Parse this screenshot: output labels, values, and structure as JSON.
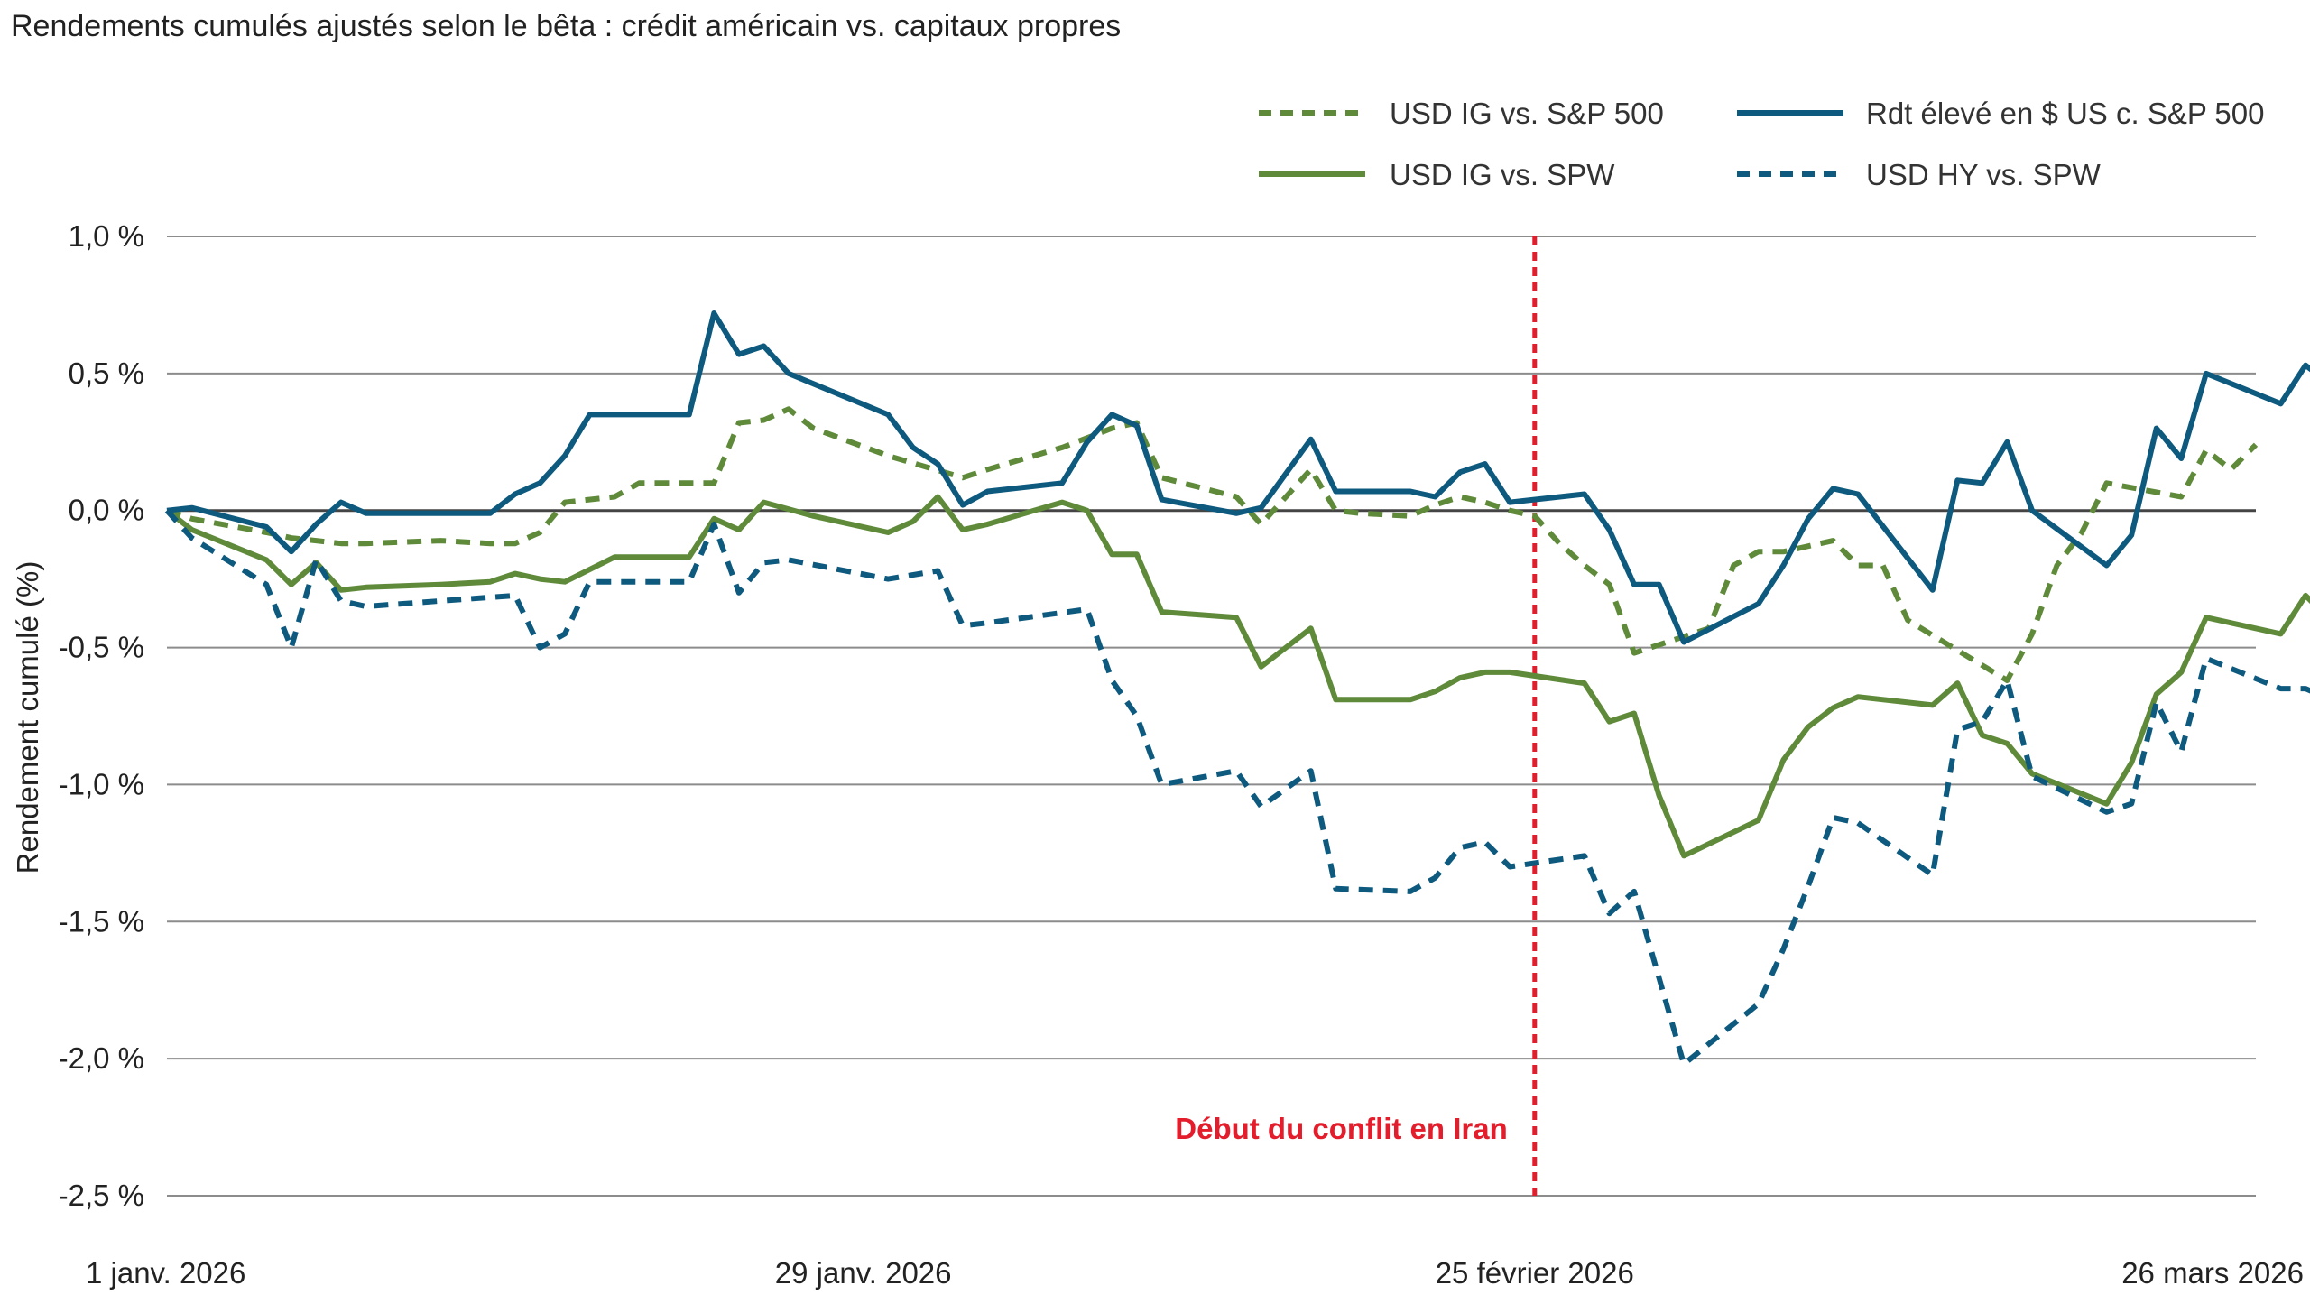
{
  "chart_data": {
    "type": "line",
    "title": "Rendements cumulés ajustés selon le bêta : crédit américain vs. capitaux propres",
    "xlabel": "",
    "ylabel": "Rendement cumulé (%)",
    "ylim": [
      -2.5,
      1.0
    ],
    "xlim": [
      "2026-01-01",
      "2026-03-26"
    ],
    "grid": "horizontal",
    "legend_position": "top-right",
    "y_ticks": [
      1.0,
      0.5,
      0.0,
      -0.5,
      -1.0,
      -1.5,
      -2.0,
      -2.5
    ],
    "y_tick_labels": [
      "1,0 %",
      "0,5 %",
      "0,0 %",
      "-0,5 %",
      "-1,0 %",
      "-1,5 %",
      "-2,0 %",
      "-2,5 %"
    ],
    "x_ticks": [
      "2026-01-01",
      "2026-01-29",
      "2026-02-25",
      "2026-03-26"
    ],
    "x_tick_labels": [
      "1 janv. 2026",
      "29 janv. 2026",
      "25 février 2026",
      "26 mars 2026"
    ],
    "annotation": {
      "date": "2026-02-25",
      "label": "Début du conflit en Iran",
      "color": "#e31d2b"
    },
    "series": [
      {
        "name": "USD IG vs. S&P 500",
        "color": "#5f8a3a",
        "dash": "dashed",
        "points": [
          [
            "2026-01-01",
            0.0
          ],
          [
            "2026-01-02",
            -0.03
          ],
          [
            "2026-01-05",
            -0.08
          ],
          [
            "2026-01-06",
            -0.1
          ],
          [
            "2026-01-07",
            -0.11
          ],
          [
            "2026-01-08",
            -0.12
          ],
          [
            "2026-01-09",
            -0.12
          ],
          [
            "2026-01-12",
            -0.11
          ],
          [
            "2026-01-14",
            -0.12
          ],
          [
            "2026-01-15",
            -0.12
          ],
          [
            "2026-01-16",
            -0.08
          ],
          [
            "2026-01-17",
            0.03
          ],
          [
            "2026-01-19",
            0.05
          ],
          [
            "2026-01-20",
            0.1
          ],
          [
            "2026-01-22",
            0.1
          ],
          [
            "2026-01-23",
            0.1
          ],
          [
            "2026-01-24",
            0.32
          ],
          [
            "2026-01-25",
            0.33
          ],
          [
            "2026-01-26",
            0.37
          ],
          [
            "2026-01-27",
            0.3
          ],
          [
            "2026-01-30",
            0.2
          ],
          [
            "2026-02-02",
            0.12
          ],
          [
            "2026-02-03",
            0.15
          ],
          [
            "2026-02-06",
            0.23
          ],
          [
            "2026-02-08",
            0.3
          ],
          [
            "2026-02-09",
            0.32
          ],
          [
            "2026-02-10",
            0.12
          ],
          [
            "2026-02-13",
            0.05
          ],
          [
            "2026-02-14",
            -0.05
          ],
          [
            "2026-02-16",
            0.15
          ],
          [
            "2026-02-17",
            0.0
          ],
          [
            "2026-02-18",
            -0.01
          ],
          [
            "2026-02-20",
            -0.02
          ],
          [
            "2026-02-21",
            0.02
          ],
          [
            "2026-02-22",
            0.05
          ],
          [
            "2026-02-23",
            0.03
          ],
          [
            "2026-02-24",
            0.0
          ],
          [
            "2026-02-25",
            -0.02
          ],
          [
            "2026-02-26",
            -0.12
          ],
          [
            "2026-02-27",
            -0.2
          ],
          [
            "2026-02-28",
            -0.27
          ],
          [
            "2026-03-01",
            -0.52
          ],
          [
            "2026-03-04",
            -0.43
          ],
          [
            "2026-03-05",
            -0.2
          ],
          [
            "2026-03-06",
            -0.15
          ],
          [
            "2026-03-07",
            -0.15
          ],
          [
            "2026-03-09",
            -0.11
          ],
          [
            "2026-03-10",
            -0.2
          ],
          [
            "2026-03-11",
            -0.2
          ],
          [
            "2026-03-12",
            -0.4
          ],
          [
            "2026-03-16",
            -0.62
          ],
          [
            "2026-03-17",
            -0.45
          ],
          [
            "2026-03-18",
            -0.2
          ],
          [
            "2026-03-19",
            -0.08
          ],
          [
            "2026-03-20",
            0.1
          ],
          [
            "2026-03-23",
            0.05
          ],
          [
            "2026-03-24",
            0.22
          ],
          [
            "2026-03-25",
            0.15
          ],
          [
            "2026-03-26",
            0.24
          ]
        ]
      },
      {
        "name": "USD IG vs. SPW",
        "color": "#5f8a3a",
        "dash": "solid",
        "points": [
          [
            "2026-01-01",
            0.0
          ],
          [
            "2026-01-02",
            -0.07
          ],
          [
            "2026-01-05",
            -0.18
          ],
          [
            "2026-01-06",
            -0.27
          ],
          [
            "2026-01-07",
            -0.19
          ],
          [
            "2026-01-08",
            -0.29
          ],
          [
            "2026-01-09",
            -0.28
          ],
          [
            "2026-01-12",
            -0.27
          ],
          [
            "2026-01-14",
            -0.26
          ],
          [
            "2026-01-15",
            -0.23
          ],
          [
            "2026-01-16",
            -0.25
          ],
          [
            "2026-01-17",
            -0.26
          ],
          [
            "2026-01-19",
            -0.17
          ],
          [
            "2026-01-20",
            -0.17
          ],
          [
            "2026-01-22",
            -0.17
          ],
          [
            "2026-01-23",
            -0.03
          ],
          [
            "2026-01-24",
            -0.07
          ],
          [
            "2026-01-25",
            0.03
          ],
          [
            "2026-01-27",
            -0.02
          ],
          [
            "2026-01-30",
            -0.08
          ],
          [
            "2026-01-31",
            -0.04
          ],
          [
            "2026-02-01",
            0.05
          ],
          [
            "2026-02-02",
            -0.07
          ],
          [
            "2026-02-03",
            -0.05
          ],
          [
            "2026-02-06",
            0.03
          ],
          [
            "2026-02-07",
            0.0
          ],
          [
            "2026-02-08",
            -0.16
          ],
          [
            "2026-02-09",
            -0.16
          ],
          [
            "2026-02-10",
            -0.37
          ],
          [
            "2026-02-13",
            -0.39
          ],
          [
            "2026-02-14",
            -0.57
          ],
          [
            "2026-02-16",
            -0.43
          ],
          [
            "2026-02-17",
            -0.69
          ],
          [
            "2026-02-20",
            -0.69
          ],
          [
            "2026-02-21",
            -0.66
          ],
          [
            "2026-02-22",
            -0.61
          ],
          [
            "2026-02-23",
            -0.59
          ],
          [
            "2026-02-24",
            -0.59
          ],
          [
            "2026-02-27",
            -0.63
          ],
          [
            "2026-02-28",
            -0.77
          ],
          [
            "2026-03-01",
            -0.74
          ],
          [
            "2026-03-02",
            -1.04
          ],
          [
            "2026-03-03",
            -1.26
          ],
          [
            "2026-03-06",
            -1.13
          ],
          [
            "2026-03-07",
            -0.91
          ],
          [
            "2026-03-08",
            -0.79
          ],
          [
            "2026-03-09",
            -0.72
          ],
          [
            "2026-03-10",
            -0.68
          ],
          [
            "2026-03-13",
            -0.71
          ],
          [
            "2026-03-14",
            -0.63
          ],
          [
            "2026-03-15",
            -0.82
          ],
          [
            "2026-03-16",
            -0.85
          ],
          [
            "2026-03-17",
            -0.96
          ],
          [
            "2026-03-20",
            -1.07
          ],
          [
            "2026-03-21",
            -0.92
          ],
          [
            "2026-03-22",
            -0.67
          ],
          [
            "2026-03-23",
            -0.59
          ],
          [
            "2026-03-24",
            -0.39
          ],
          [
            "2026-03-27",
            -0.45
          ],
          [
            "2026-03-28",
            -0.31
          ],
          [
            "2026-03-29",
            -0.4
          ],
          [
            "2026-03-30",
            -0.41
          ]
        ]
      },
      {
        "name": "Rdt élevé en $ US c. S&P 500",
        "color": "#0e5a7f",
        "dash": "solid",
        "points": [
          [
            "2026-01-01",
            0.0
          ],
          [
            "2026-01-02",
            0.01
          ],
          [
            "2026-01-05",
            -0.06
          ],
          [
            "2026-01-06",
            -0.15
          ],
          [
            "2026-01-07",
            -0.05
          ],
          [
            "2026-01-08",
            0.03
          ],
          [
            "2026-01-09",
            -0.01
          ],
          [
            "2026-01-12",
            -0.01
          ],
          [
            "2026-01-14",
            -0.01
          ],
          [
            "2026-01-15",
            0.06
          ],
          [
            "2026-01-16",
            0.1
          ],
          [
            "2026-01-17",
            0.2
          ],
          [
            "2026-01-18",
            0.35
          ],
          [
            "2026-01-20",
            0.35
          ],
          [
            "2026-01-22",
            0.35
          ],
          [
            "2026-01-23",
            0.72
          ],
          [
            "2026-01-24",
            0.57
          ],
          [
            "2026-01-25",
            0.6
          ],
          [
            "2026-01-26",
            0.5
          ],
          [
            "2026-01-30",
            0.35
          ],
          [
            "2026-01-31",
            0.23
          ],
          [
            "2026-02-01",
            0.17
          ],
          [
            "2026-02-02",
            0.02
          ],
          [
            "2026-02-03",
            0.07
          ],
          [
            "2026-02-06",
            0.1
          ],
          [
            "2026-02-07",
            0.25
          ],
          [
            "2026-02-08",
            0.35
          ],
          [
            "2026-02-09",
            0.31
          ],
          [
            "2026-02-10",
            0.04
          ],
          [
            "2026-02-13",
            -0.01
          ],
          [
            "2026-02-14",
            0.01
          ],
          [
            "2026-02-16",
            0.26
          ],
          [
            "2026-02-17",
            0.07
          ],
          [
            "2026-02-20",
            0.07
          ],
          [
            "2026-02-21",
            0.05
          ],
          [
            "2026-02-22",
            0.14
          ],
          [
            "2026-02-23",
            0.17
          ],
          [
            "2026-02-24",
            0.03
          ],
          [
            "2026-02-27",
            0.06
          ],
          [
            "2026-02-28",
            -0.07
          ],
          [
            "2026-03-01",
            -0.27
          ],
          [
            "2026-03-02",
            -0.27
          ],
          [
            "2026-03-03",
            -0.48
          ],
          [
            "2026-03-06",
            -0.34
          ],
          [
            "2026-03-07",
            -0.2
          ],
          [
            "2026-03-08",
            -0.03
          ],
          [
            "2026-03-09",
            0.08
          ],
          [
            "2026-03-10",
            0.06
          ],
          [
            "2026-03-13",
            -0.29
          ],
          [
            "2026-03-14",
            0.11
          ],
          [
            "2026-03-15",
            0.1
          ],
          [
            "2026-03-16",
            0.25
          ],
          [
            "2026-03-17",
            0.0
          ],
          [
            "2026-03-20",
            -0.2
          ],
          [
            "2026-03-21",
            -0.09
          ],
          [
            "2026-03-22",
            0.3
          ],
          [
            "2026-03-23",
            0.19
          ],
          [
            "2026-03-24",
            0.5
          ],
          [
            "2026-03-27",
            0.39
          ],
          [
            "2026-03-28",
            0.53
          ],
          [
            "2026-03-29",
            0.46
          ],
          [
            "2026-03-30",
            0.76
          ]
        ]
      },
      {
        "name": "USD HY vs. SPW",
        "color": "#0e5a7f",
        "dash": "dashed",
        "points": [
          [
            "2026-01-01",
            0.0
          ],
          [
            "2026-01-02",
            -0.1
          ],
          [
            "2026-01-05",
            -0.27
          ],
          [
            "2026-01-06",
            -0.5
          ],
          [
            "2026-01-07",
            -0.18
          ],
          [
            "2026-01-08",
            -0.33
          ],
          [
            "2026-01-09",
            -0.35
          ],
          [
            "2026-01-12",
            -0.33
          ],
          [
            "2026-01-15",
            -0.31
          ],
          [
            "2026-01-16",
            -0.5
          ],
          [
            "2026-01-17",
            -0.45
          ],
          [
            "2026-01-18",
            -0.26
          ],
          [
            "2026-01-20",
            -0.26
          ],
          [
            "2026-01-22",
            -0.26
          ],
          [
            "2026-01-23",
            -0.05
          ],
          [
            "2026-01-24",
            -0.3
          ],
          [
            "2026-01-25",
            -0.19
          ],
          [
            "2026-01-26",
            -0.18
          ],
          [
            "2026-01-30",
            -0.25
          ],
          [
            "2026-02-01",
            -0.22
          ],
          [
            "2026-02-02",
            -0.42
          ],
          [
            "2026-02-03",
            -0.41
          ],
          [
            "2026-02-07",
            -0.36
          ],
          [
            "2026-02-08",
            -0.62
          ],
          [
            "2026-02-09",
            -0.75
          ],
          [
            "2026-02-10",
            -1.0
          ],
          [
            "2026-02-13",
            -0.95
          ],
          [
            "2026-02-14",
            -1.08
          ],
          [
            "2026-02-16",
            -0.95
          ],
          [
            "2026-02-17",
            -1.38
          ],
          [
            "2026-02-20",
            -1.39
          ],
          [
            "2026-02-21",
            -1.34
          ],
          [
            "2026-02-22",
            -1.23
          ],
          [
            "2026-02-23",
            -1.21
          ],
          [
            "2026-02-24",
            -1.3
          ],
          [
            "2026-02-27",
            -1.26
          ],
          [
            "2026-02-28",
            -1.47
          ],
          [
            "2026-03-01",
            -1.39
          ],
          [
            "2026-03-03",
            -2.02
          ],
          [
            "2026-03-06",
            -1.8
          ],
          [
            "2026-03-07",
            -1.6
          ],
          [
            "2026-03-08",
            -1.37
          ],
          [
            "2026-03-09",
            -1.12
          ],
          [
            "2026-03-10",
            -1.14
          ],
          [
            "2026-03-13",
            -1.33
          ],
          [
            "2026-03-14",
            -0.8
          ],
          [
            "2026-03-15",
            -0.77
          ],
          [
            "2026-03-16",
            -0.62
          ],
          [
            "2026-03-17",
            -0.97
          ],
          [
            "2026-03-20",
            -1.1
          ],
          [
            "2026-03-21",
            -1.07
          ],
          [
            "2026-03-22",
            -0.7
          ],
          [
            "2026-03-23",
            -0.88
          ],
          [
            "2026-03-24",
            -0.54
          ],
          [
            "2026-03-27",
            -0.65
          ],
          [
            "2026-03-28",
            -0.65
          ],
          [
            "2026-03-29",
            -0.69
          ],
          [
            "2026-03-30",
            -0.6
          ]
        ]
      }
    ]
  },
  "colors": {
    "grid": "#8c8c8c",
    "zero_line": "#444444",
    "axis_text": "#222222"
  }
}
